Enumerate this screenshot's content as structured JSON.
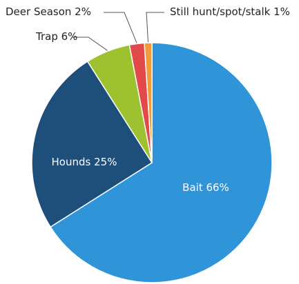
{
  "chart_data": {
    "type": "pie",
    "slices": [
      {
        "label": "Bait 66%",
        "value": 66,
        "color": "#2f94d8",
        "label_style": "inside"
      },
      {
        "label": "Hounds 25%",
        "value": 25,
        "color": "#1e4e7a",
        "label_style": "inside"
      },
      {
        "label": "Trap 6%",
        "value": 6,
        "color": "#9ec130",
        "label_style": "outside"
      },
      {
        "label": "Deer Season 2%",
        "value": 2,
        "color": "#e24a4a",
        "label_style": "outside"
      },
      {
        "label": "Still hunt/spot/stalk 1%",
        "value": 1,
        "color": "#f39a3a",
        "label_style": "outside"
      }
    ],
    "start_angle_deg": 0,
    "direction": "clockwise"
  }
}
